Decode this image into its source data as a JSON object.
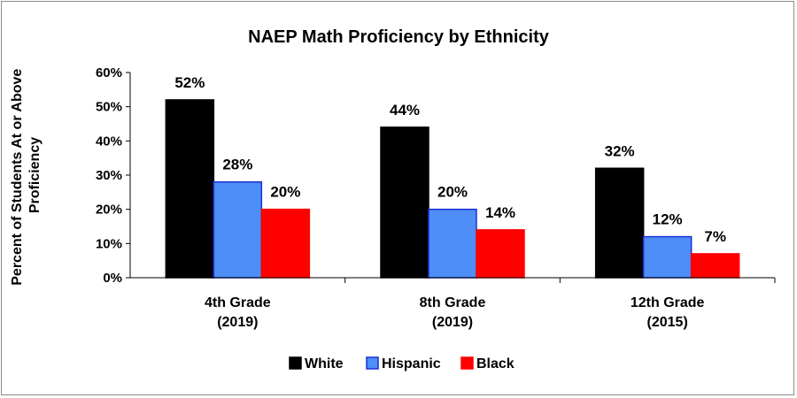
{
  "chart_data": {
    "type": "bar",
    "title": "NAEP Math Proficiency by Ethnicity",
    "ylabel": [
      "Percent of Students At or Above",
      "Proficiency"
    ],
    "xlabel": "",
    "ylim": [
      0,
      60
    ],
    "ytick_labels": [
      "0%",
      "10%",
      "20%",
      "30%",
      "40%",
      "50%",
      "60%"
    ],
    "categories": [
      [
        "4th Grade",
        "(2019)"
      ],
      [
        "8th Grade",
        "(2019)"
      ],
      [
        "12th Grade",
        "(2015)"
      ]
    ],
    "series": [
      {
        "name": "White",
        "color": "#000000",
        "stroke": "#000000",
        "values": [
          52,
          44,
          32
        ],
        "labels": [
          "52%",
          "44%",
          "32%"
        ]
      },
      {
        "name": "Hispanic",
        "color": "#4d8ef7",
        "stroke": "#1f2fd6",
        "values": [
          28,
          20,
          12
        ],
        "labels": [
          "28%",
          "20%",
          "12%"
        ]
      },
      {
        "name": "Black",
        "color": "#ff0000",
        "stroke": "#ff0000",
        "values": [
          20,
          14,
          7
        ],
        "labels": [
          "20%",
          "14%",
          "7%"
        ]
      }
    ],
    "legend_position": "bottom",
    "grid": false
  }
}
